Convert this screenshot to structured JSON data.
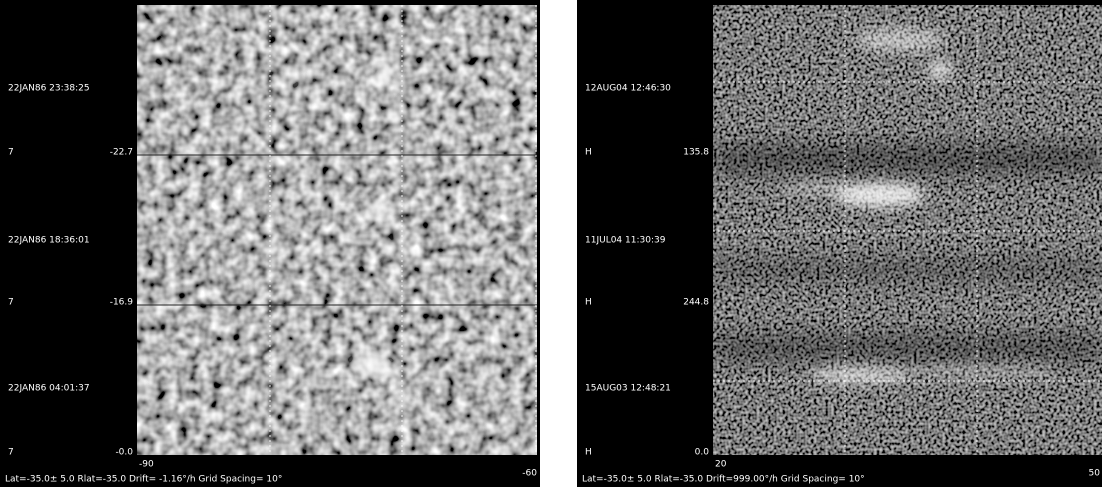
{
  "panels": [
    {
      "frames": [
        {
          "time": "22JAN86 23:38:25",
          "filter": "7",
          "value": "-22.7"
        },
        {
          "time": "22JAN86 18:36:01",
          "filter": "7",
          "value": "-16.9"
        },
        {
          "time": "22JAN86 04:01:37",
          "filter": "7",
          "value": "-0.0"
        }
      ],
      "x_start": "-90",
      "x_end": "-60",
      "footer": "Lat=-35.0± 5.0 Rlat=-35.0 Drift= -1.16°/h Grid Spacing= 10°"
    },
    {
      "frames": [
        {
          "time": "12AUG04 12:46:30",
          "filter": "H",
          "value": "135.8"
        },
        {
          "time": "11JUL04 11:30:39",
          "filter": "H",
          "value": "244.8"
        },
        {
          "time": "15AUG03 12:48:21",
          "filter": "H",
          "value": "0.0"
        }
      ],
      "x_start": "20",
      "x_end": "50",
      "footer": "Lat=-35.0± 5.0 Rlat=-35.0 Drift=999.00°/h Grid Spacing= 10°"
    }
  ]
}
